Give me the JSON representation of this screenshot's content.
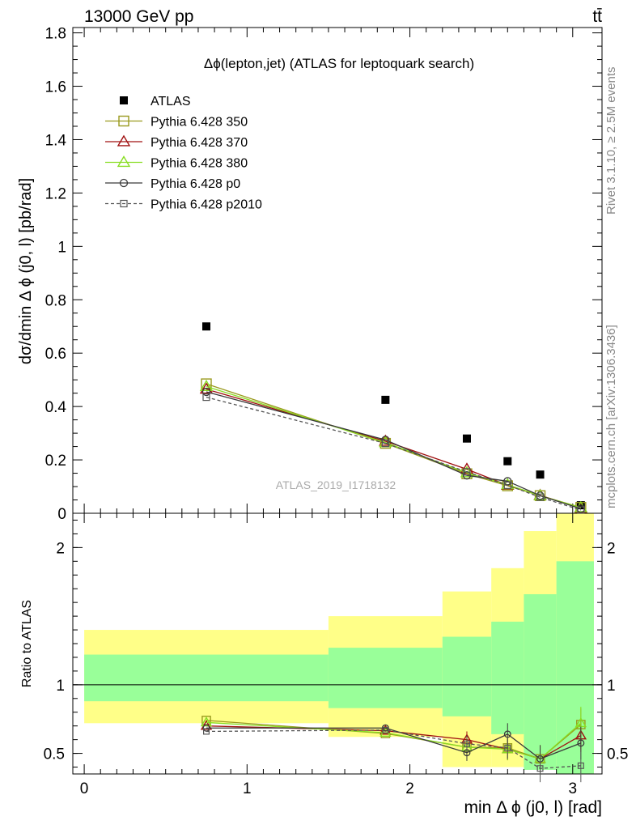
{
  "header": {
    "left": "13000 GeV pp",
    "right": "tt̄"
  },
  "side_labels": {
    "rivet": "Rivet 3.1.10, ≥ 2.5M events",
    "site": "mcplots.cern.ch [arXiv:1306.3436]"
  },
  "chart_data": [
    {
      "type": "scatter",
      "panel": "main",
      "title": "Δϕ(lepton,jet) (ATLAS for leptoquark search)",
      "ylabel": "dσ/dmin Δ ϕ (j0, l) [pb/rad]",
      "watermark": "ATLAS_2019_I1718132",
      "xlim": [
        -0.07,
        3.18
      ],
      "ylim": [
        0,
        1.82
      ],
      "ytick_labels": [
        "0",
        "0.2",
        "0.4",
        "0.6",
        "0.8",
        "1",
        "1.2",
        "1.4",
        "1.6",
        "1.8"
      ],
      "legend_position": "top-left",
      "x": [
        0.75,
        1.85,
        2.35,
        2.6,
        2.8,
        3.05
      ],
      "series": [
        {
          "name": "ATLAS",
          "color": "#000000",
          "marker": "filled-square",
          "values": [
            0.7,
            0.425,
            0.28,
            0.195,
            0.145,
            0.03
          ]
        },
        {
          "name": "Pythia 6.428 350",
          "color": "#9a9a1e",
          "marker": "open-square",
          "line": "solid",
          "values": [
            0.485,
            0.262,
            0.148,
            0.103,
            0.066,
            0.022
          ]
        },
        {
          "name": "Pythia 6.428 370",
          "color": "#a01010",
          "marker": "open-triangle",
          "line": "solid",
          "values": [
            0.465,
            0.27,
            0.165,
            0.105,
            0.067,
            0.019
          ]
        },
        {
          "name": "Pythia 6.428 380",
          "color": "#88dd22",
          "marker": "open-triangle",
          "line": "solid",
          "values": [
            0.475,
            0.265,
            0.152,
            0.107,
            0.066,
            0.021
          ]
        },
        {
          "name": "Pythia 6.428 p0",
          "color": "#3a3a3a",
          "marker": "open-circle",
          "line": "solid",
          "values": [
            0.455,
            0.275,
            0.142,
            0.12,
            0.066,
            0.017
          ]
        },
        {
          "name": "Pythia 6.428 p2010",
          "color": "#555555",
          "marker": "open-square-small",
          "line": "dashed",
          "values": [
            0.435,
            0.262,
            0.155,
            0.105,
            0.06,
            0.012
          ]
        }
      ]
    },
    {
      "type": "line",
      "panel": "ratio",
      "ylabel": "Ratio to ATLAS",
      "xlabel": "min Δ ϕ (j0, l) [rad]",
      "xlim": [
        -0.07,
        3.18
      ],
      "ylim": [
        0.35,
        2.25
      ],
      "xtick_labels": [
        "0",
        "1",
        "2",
        "3"
      ],
      "ytick_labels": [
        "0.5",
        "1",
        "2"
      ],
      "x": [
        0.75,
        1.85,
        2.35,
        2.6,
        2.8,
        3.05
      ],
      "bands": [
        {
          "x0": 0.0,
          "x1": 1.5,
          "yellow": [
            0.72,
            1.4
          ],
          "green": [
            0.88,
            1.22
          ]
        },
        {
          "x0": 1.5,
          "x1": 2.2,
          "yellow": [
            0.62,
            1.5
          ],
          "green": [
            0.83,
            1.27
          ]
        },
        {
          "x0": 2.2,
          "x1": 2.5,
          "yellow": [
            0.4,
            1.68
          ],
          "green": [
            0.77,
            1.35
          ]
        },
        {
          "x0": 2.5,
          "x1": 2.7,
          "yellow": [
            0.4,
            1.85
          ],
          "green": [
            0.64,
            1.46
          ]
        },
        {
          "x0": 2.7,
          "x1": 2.9,
          "yellow": [
            0.4,
            2.12
          ],
          "green": [
            0.38,
            1.66
          ]
        },
        {
          "x0": 2.9,
          "x1": 3.13,
          "yellow": [
            0.35,
            2.25
          ],
          "green": [
            0.35,
            1.9
          ]
        }
      ],
      "series": [
        {
          "name": "Pythia 6.428 350",
          "color": "#9a9a1e",
          "marker": "open-square",
          "line": "solid",
          "values": [
            0.74,
            0.645,
            0.545,
            0.54,
            0.46,
            0.71
          ]
        },
        {
          "name": "Pythia 6.428 370",
          "color": "#a01010",
          "marker": "open-triangle",
          "line": "solid",
          "values": [
            0.7,
            0.665,
            0.6,
            0.53,
            0.46,
            0.63
          ]
        },
        {
          "name": "Pythia 6.428 380",
          "color": "#88dd22",
          "marker": "open-triangle",
          "line": "solid",
          "values": [
            0.725,
            0.65,
            0.545,
            0.53,
            0.46,
            0.72
          ]
        },
        {
          "name": "Pythia 6.428 p0",
          "color": "#3a3a3a",
          "marker": "open-circle",
          "line": "solid",
          "values": [
            0.685,
            0.685,
            0.505,
            0.64,
            0.46,
            0.575
          ]
        },
        {
          "name": "Pythia 6.428 p2010",
          "color": "#555555",
          "marker": "open-square-small",
          "line": "dashed",
          "values": [
            0.66,
            0.67,
            0.57,
            0.54,
            0.39,
            0.41
          ]
        }
      ]
    }
  ]
}
